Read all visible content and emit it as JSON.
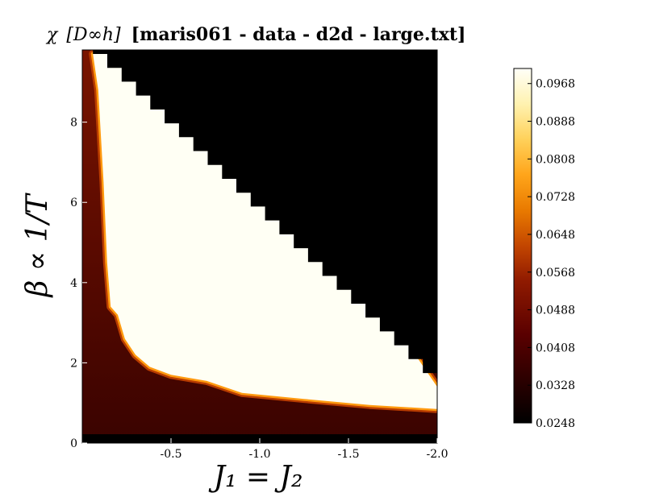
{
  "chart_data": {
    "type": "heatmap",
    "title_prefix": "χ",
    "title_group": "[D∞h]",
    "title_file": "[maris061 - data - d2d - large.txt]",
    "xlabel": "J₁ = J₂",
    "ylabel": "β ∝ 1/T",
    "xlim": [
      0.0,
      -2.0
    ],
    "ylim": [
      0,
      9.8
    ],
    "x_ticks": [
      {
        "value": -0.5,
        "label": "-0.5"
      },
      {
        "value": -1.0,
        "label": "-1.0"
      },
      {
        "value": -1.5,
        "label": "-1.5"
      },
      {
        "value": -2.0,
        "label": "-2.0"
      }
    ],
    "y_ticks": [
      {
        "value": 0,
        "label": "0"
      },
      {
        "value": 2,
        "label": "2"
      },
      {
        "value": 4,
        "label": "4"
      },
      {
        "value": 6,
        "label": "6"
      },
      {
        "value": 8,
        "label": "8"
      }
    ],
    "colorbar": {
      "min": 0.0248,
      "max": 0.1,
      "ticks": [
        "0.0968",
        "0.0888",
        "0.0808",
        "0.0728",
        "0.0648",
        "0.0568",
        "0.0488",
        "0.0408",
        "0.0328",
        "0.0248"
      ],
      "colormap": "afmhot"
    },
    "regions": {
      "low_temperature_masked_color": "#000000",
      "plateau_value": 0.1,
      "boundary_description": "black (no data) above diagonal from (0,9.7) to (-2.0,1.4); bright plateau between ordered boundary and diagonal; dark red high-temperature region"
    }
  }
}
